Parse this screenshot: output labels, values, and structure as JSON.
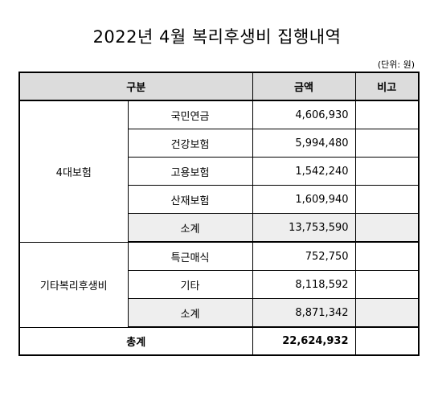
{
  "title": "2022년 4월 복리후생비 집행내역",
  "unit": "(단위: 원)",
  "headers": {
    "category": "구분",
    "amount": "금액",
    "note": "비고"
  },
  "groups": [
    {
      "name": "4대보험",
      "items": [
        {
          "label": "국민연금",
          "amount": "4,606,930"
        },
        {
          "label": "건강보험",
          "amount": "5,994,480"
        },
        {
          "label": "고용보험",
          "amount": "1,542,240"
        },
        {
          "label": "산재보험",
          "amount": "1,609,940"
        }
      ],
      "subtotal": {
        "label": "소계",
        "amount": "13,753,590"
      }
    },
    {
      "name": "기타복리후생비",
      "items": [
        {
          "label": "특근매식",
          "amount": "752,750"
        },
        {
          "label": "기타",
          "amount": "8,118,592"
        }
      ],
      "subtotal": {
        "label": "소계",
        "amount": "8,871,342"
      }
    }
  ],
  "total": {
    "label": "총계",
    "amount": "22,624,932"
  }
}
